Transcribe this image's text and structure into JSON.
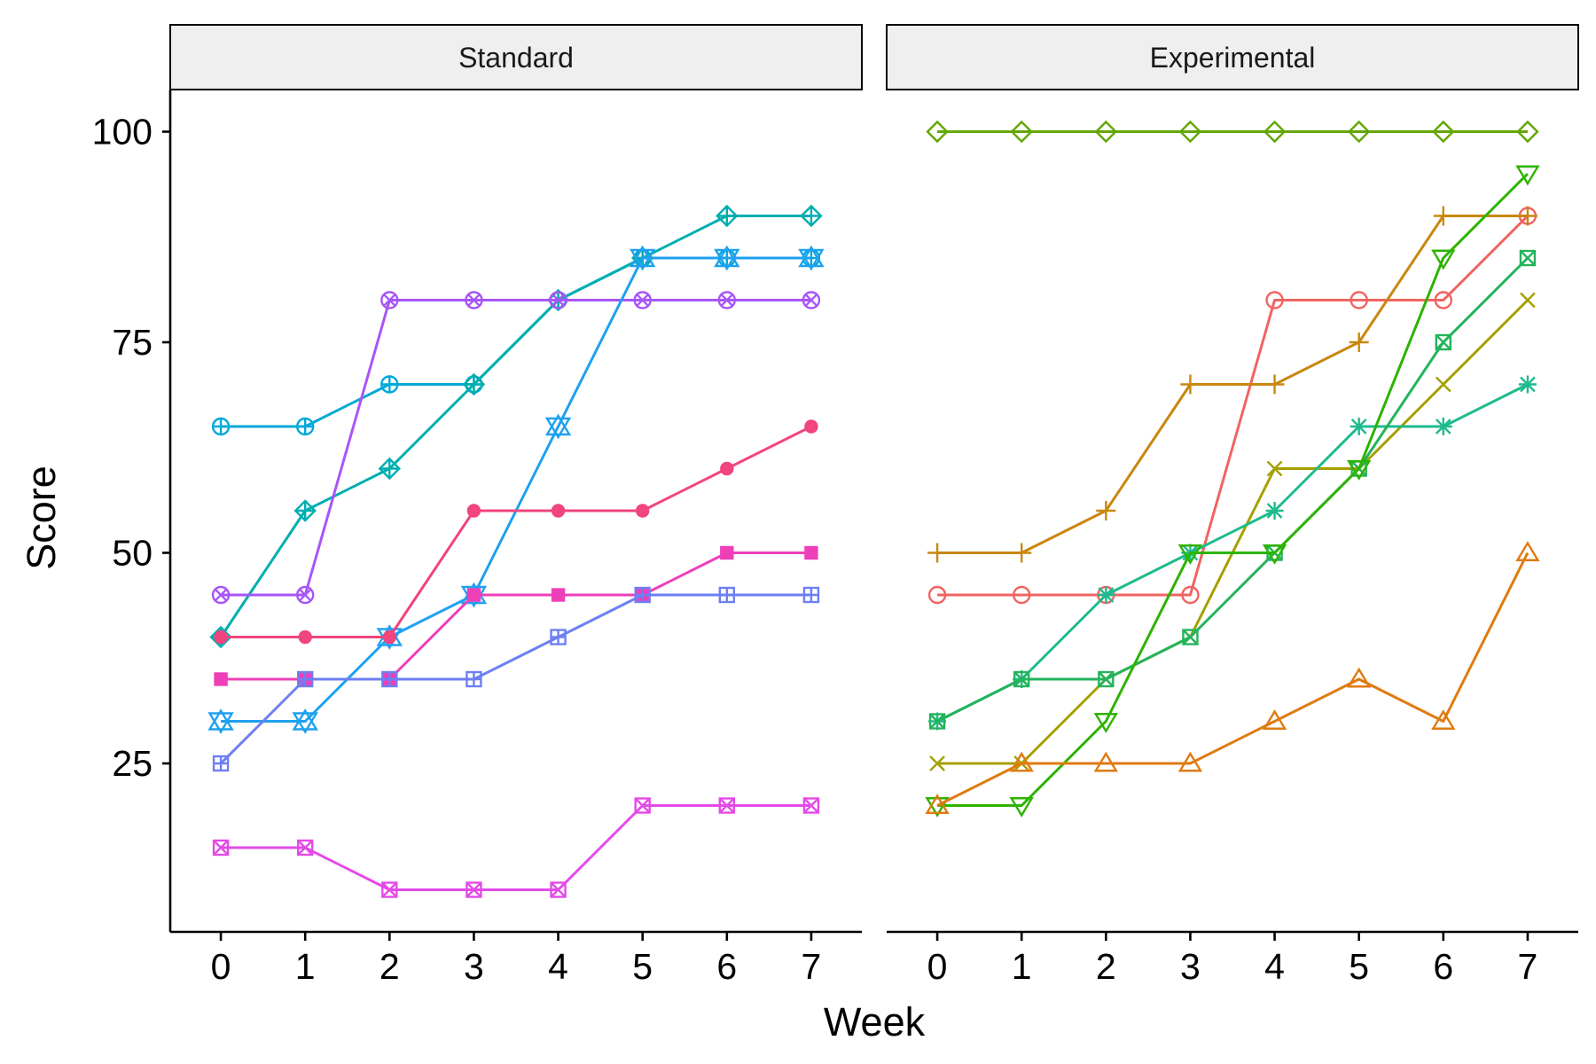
{
  "chart_data": {
    "type": "line",
    "xlabel": "Week",
    "ylabel": "Score",
    "x": [
      0,
      1,
      2,
      3,
      4,
      5,
      6,
      7
    ],
    "xlim": [
      -0.6,
      7.6
    ],
    "ylim": [
      5,
      105
    ],
    "yticks": [
      25,
      50,
      75,
      100
    ],
    "xticks": [
      0,
      1,
      2,
      3,
      4,
      5,
      6,
      7
    ],
    "grid": false,
    "legend": "none",
    "panels": [
      {
        "label": "Standard",
        "series": [
          {
            "color": "#00a9d8",
            "marker": "circle-plus",
            "values": [
              65,
              65,
              70,
              70,
              80,
              85,
              85,
              85
            ]
          },
          {
            "color": "#00aeb0",
            "marker": "diamond-plus",
            "values": [
              40,
              55,
              60,
              70,
              80,
              85,
              90,
              90
            ]
          },
          {
            "color": "#a855f7",
            "marker": "circle-x",
            "values": [
              45,
              45,
              80,
              80,
              80,
              80,
              80,
              80
            ]
          },
          {
            "color": "#1ea1f0",
            "marker": "star-of-david",
            "values": [
              30,
              30,
              40,
              45,
              65,
              85,
              85,
              85
            ]
          },
          {
            "color": "#f0457e",
            "marker": "filled-circle",
            "values": [
              40,
              40,
              40,
              55,
              55,
              55,
              60,
              65
            ]
          },
          {
            "color": "#ee3fb8",
            "marker": "filled-square",
            "values": [
              35,
              35,
              35,
              45,
              45,
              45,
              50,
              50
            ]
          },
          {
            "color": "#6d7ff2",
            "marker": "square-plus",
            "values": [
              25,
              35,
              35,
              35,
              40,
              45,
              45,
              45
            ]
          },
          {
            "color": "#e44ae8",
            "marker": "square-x",
            "values": [
              15,
              15,
              10,
              10,
              10,
              20,
              20,
              20
            ]
          }
        ]
      },
      {
        "label": "Experimental",
        "series": [
          {
            "color": "#63a600",
            "marker": "diamond",
            "values": [
              100,
              100,
              100,
              100,
              100,
              100,
              100,
              100
            ]
          },
          {
            "color": "#f06461",
            "marker": "circle",
            "values": [
              45,
              45,
              45,
              45,
              80,
              80,
              80,
              90
            ]
          },
          {
            "color": "#c9870e",
            "marker": "plus",
            "values": [
              50,
              50,
              55,
              70,
              70,
              75,
              90,
              90
            ]
          },
          {
            "color": "#a5a000",
            "marker": "x",
            "values": [
              25,
              25,
              35,
              40,
              60,
              60,
              70,
              80
            ]
          },
          {
            "color": "#1dbb8f",
            "marker": "asterisk",
            "values": [
              30,
              35,
              45,
              50,
              55,
              65,
              65,
              70
            ]
          },
          {
            "color": "#24b35c",
            "marker": "square-x",
            "values": [
              30,
              35,
              35,
              40,
              50,
              60,
              75,
              85
            ]
          },
          {
            "color": "#2db300",
            "marker": "triangle-down",
            "values": [
              20,
              20,
              30,
              50,
              50,
              60,
              85,
              95
            ]
          },
          {
            "color": "#e07a10",
            "marker": "triangle-up",
            "values": [
              20,
              25,
              25,
              25,
              30,
              35,
              30,
              50
            ]
          }
        ]
      }
    ]
  }
}
